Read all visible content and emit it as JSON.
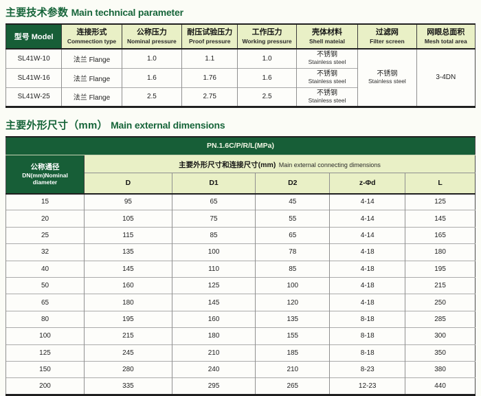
{
  "colors": {
    "dark_green": "#175e37",
    "light_green": "#e9f0c6",
    "title_green": "#17653a",
    "page_bg": "#fbfcf6"
  },
  "section1": {
    "title_zh": "主要技术参数",
    "title_en": "Main technical parameter",
    "table": {
      "model_header": "型号 Model",
      "headers": [
        {
          "zh": "连接形式",
          "en": "Commection type"
        },
        {
          "zh": "公称压力",
          "en": "Nominal pressure"
        },
        {
          "zh": "耐压试验压力",
          "en": "Proof pressure"
        },
        {
          "zh": "工作压力",
          "en": "Working pressure"
        },
        {
          "zh": "壳体材料",
          "en": "Shell mateial"
        },
        {
          "zh": "过滤网",
          "en": "Filter screen"
        },
        {
          "zh": "网眼总面积",
          "en": "Mesh total area"
        }
      ],
      "rows": [
        {
          "model": "SL41W-10",
          "connection": "法兰 Flange",
          "nominal": "1.0",
          "proof": "1.1",
          "working": "1.0",
          "shell_zh": "不锈钢",
          "shell_en": "Stainless steel"
        },
        {
          "model": "SL41W-16",
          "connection": "法兰 Flange",
          "nominal": "1.6",
          "proof": "1.76",
          "working": "1.6",
          "shell_zh": "不锈钢",
          "shell_en": "Stainless steel"
        },
        {
          "model": "SL41W-25",
          "connection": "法兰 Flange",
          "nominal": "2.5",
          "proof": "2.75",
          "working": "2.5",
          "shell_zh": "不锈钢",
          "shell_en": "Stainless steel"
        }
      ],
      "filter_zh": "不锈钢",
      "filter_en": "Stainless steel",
      "mesh_area": "3-4DN"
    }
  },
  "section2": {
    "title_zh": "主要外形尺寸（mm）",
    "title_en": "Main external dimensions",
    "table": {
      "pn_header": "PN.1.6C/P/R/L(MPa)",
      "dn_header": [
        "公称通径",
        "DN(mm)Nominal",
        "diameter"
      ],
      "group_header_zh": "主要外形尺寸和连接尺寸(mm)",
      "group_header_en": "Main external connecting dimensions",
      "columns": [
        "D",
        "D1",
        "D2",
        "z-Φd",
        "L"
      ],
      "rows": [
        {
          "dn": "15",
          "values": [
            "95",
            "65",
            "45",
            "4-14",
            "125"
          ]
        },
        {
          "dn": "20",
          "values": [
            "105",
            "75",
            "55",
            "4-14",
            "145"
          ]
        },
        {
          "dn": "25",
          "values": [
            "115",
            "85",
            "65",
            "4-14",
            "165"
          ]
        },
        {
          "dn": "32",
          "values": [
            "135",
            "100",
            "78",
            "4-18",
            "180"
          ]
        },
        {
          "dn": "40",
          "values": [
            "145",
            "110",
            "85",
            "4-18",
            "195"
          ]
        },
        {
          "dn": "50",
          "values": [
            "160",
            "125",
            "100",
            "4-18",
            "215"
          ]
        },
        {
          "dn": "65",
          "values": [
            "180",
            "145",
            "120",
            "4-18",
            "250"
          ]
        },
        {
          "dn": "80",
          "values": [
            "195",
            "160",
            "135",
            "8-18",
            "285"
          ]
        },
        {
          "dn": "100",
          "values": [
            "215",
            "180",
            "155",
            "8-18",
            "300"
          ]
        },
        {
          "dn": "125",
          "values": [
            "245",
            "210",
            "185",
            "8-18",
            "350"
          ]
        },
        {
          "dn": "150",
          "values": [
            "280",
            "240",
            "210",
            "8-23",
            "380"
          ]
        },
        {
          "dn": "200",
          "values": [
            "335",
            "295",
            "265",
            "12-23",
            "440"
          ]
        }
      ]
    }
  }
}
